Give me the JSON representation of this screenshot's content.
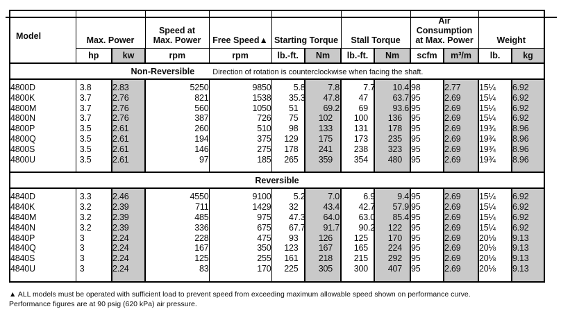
{
  "table": {
    "header": {
      "model_label": "Model",
      "groups": [
        {
          "label": "Max. Power",
          "units": [
            "hp",
            "kw"
          ]
        },
        {
          "label": "Speed at\nMax. Power",
          "units": [
            "rpm"
          ]
        },
        {
          "label": "Free Speed▲",
          "units": [
            "rpm"
          ]
        },
        {
          "label": "Starting Torque",
          "units": [
            "lb.-ft.",
            "Nm"
          ]
        },
        {
          "label": "Stall Torque",
          "units": [
            "lb.-ft.",
            "Nm"
          ]
        },
        {
          "label": "Air\nConsumption\nat Max. Power",
          "units": [
            "scfm",
            "m³/m"
          ]
        },
        {
          "label": "Weight",
          "units": [
            "lb.",
            "kg"
          ]
        }
      ]
    },
    "sections": [
      {
        "title": "Non-Reversible",
        "note": "Direction of rotation is counterclockwise when facing the shaft.",
        "rows": [
          {
            "model": "4800D",
            "cells": [
              "3.8",
              "2.83",
              "5250",
              "9850",
              "5.8",
              "7.8",
              "7.7",
              "10.4",
              "98",
              "2.77",
              "15¼",
              "6.92"
            ]
          },
          {
            "model": "4800K",
            "cells": [
              "3.7",
              "2.76",
              "821",
              "1538",
              "35.3",
              "47.8",
              "47",
              "63.7",
              "95",
              "2.69",
              "15¼",
              "6.92"
            ]
          },
          {
            "model": "4800M",
            "cells": [
              "3.7",
              "2.76",
              "560",
              "1050",
              "51",
              "69.2",
              "69",
              "93.6",
              "95",
              "2.69",
              "15¼",
              "6.92"
            ]
          },
          {
            "model": "4800N",
            "cells": [
              "3.7",
              "2.76",
              "387",
              "726",
              "75",
              "102",
              "100",
              "136",
              "95",
              "2.69",
              "15¼",
              "6.92"
            ]
          },
          {
            "model": "4800P",
            "cells": [
              "3.5",
              "2.61",
              "260",
              "510",
              "98",
              "133",
              "131",
              "178",
              "95",
              "2.69",
              "19¾",
              "8.96"
            ]
          },
          {
            "model": "4800Q",
            "cells": [
              "3.5",
              "2.61",
              "194",
              "375",
              "129",
              "175",
              "173",
              "235",
              "95",
              "2.69",
              "19¾",
              "8.96"
            ]
          },
          {
            "model": "4800S",
            "cells": [
              "3.5",
              "2.61",
              "146",
              "275",
              "178",
              "241",
              "238",
              "323",
              "95",
              "2.69",
              "19¾",
              "8.96"
            ]
          },
          {
            "model": "4800U",
            "cells": [
              "3.5",
              "2.61",
              "97",
              "185",
              "265",
              "359",
              "354",
              "480",
              "95",
              "2.69",
              "19¾",
              "8.96"
            ]
          }
        ]
      },
      {
        "title": "Reversible",
        "note": "",
        "rows": [
          {
            "model": "4840D",
            "cells": [
              "3.3",
              "2.46",
              "4550",
              "9100",
              "5.2",
              "7.0",
              "6.9",
              "9.4",
              "95",
              "2.69",
              "15¼",
              "6.92"
            ]
          },
          {
            "model": "4840K",
            "cells": [
              "3.2",
              "2.39",
              "711",
              "1429",
              "32",
              "43.4",
              "42.7",
              "57.9",
              "95",
              "2.69",
              "15¼",
              "6.92"
            ]
          },
          {
            "model": "4840M",
            "cells": [
              "3.2",
              "2.39",
              "485",
              "975",
              "47.3",
              "64.0",
              "63.0",
              "85.4",
              "95",
              "2.69",
              "15¼",
              "6.92"
            ]
          },
          {
            "model": "4840N",
            "cells": [
              "3.2",
              "2.39",
              "336",
              "675",
              "67.7",
              "91.7",
              "90.2",
              "122",
              "95",
              "2.69",
              "15¼",
              "6.92"
            ]
          },
          {
            "model": "4840P",
            "cells": [
              "3",
              "2.24",
              "228",
              "475",
              "93",
              "126",
              "125",
              "170",
              "95",
              "2.69",
              "20⅛",
              "9.13"
            ]
          },
          {
            "model": "4840Q",
            "cells": [
              "3",
              "2.24",
              "167",
              "350",
              "123",
              "167",
              "165",
              "224",
              "95",
              "2.69",
              "20⅛",
              "9.13"
            ]
          },
          {
            "model": "4840S",
            "cells": [
              "3",
              "2.24",
              "125",
              "255",
              "161",
              "218",
              "215",
              "292",
              "95",
              "2.69",
              "20⅛",
              "9.13"
            ]
          },
          {
            "model": "4840U",
            "cells": [
              "3",
              "2.24",
              "83",
              "170",
              "225",
              "305",
              "300",
              "407",
              "95",
              "2.69",
              "20⅛",
              "9.13"
            ]
          }
        ]
      }
    ]
  },
  "footnotes": [
    "▲ ALL models must be operated with sufficient load to prevent speed from exceeding maximum allowable speed shown on performance curve.",
    "Performance figures are at 90 psig (620 kPa) air pressure."
  ],
  "colors": {
    "shaded_column": "#c9c9c9",
    "border": "#000000",
    "background": "#ffffff"
  }
}
